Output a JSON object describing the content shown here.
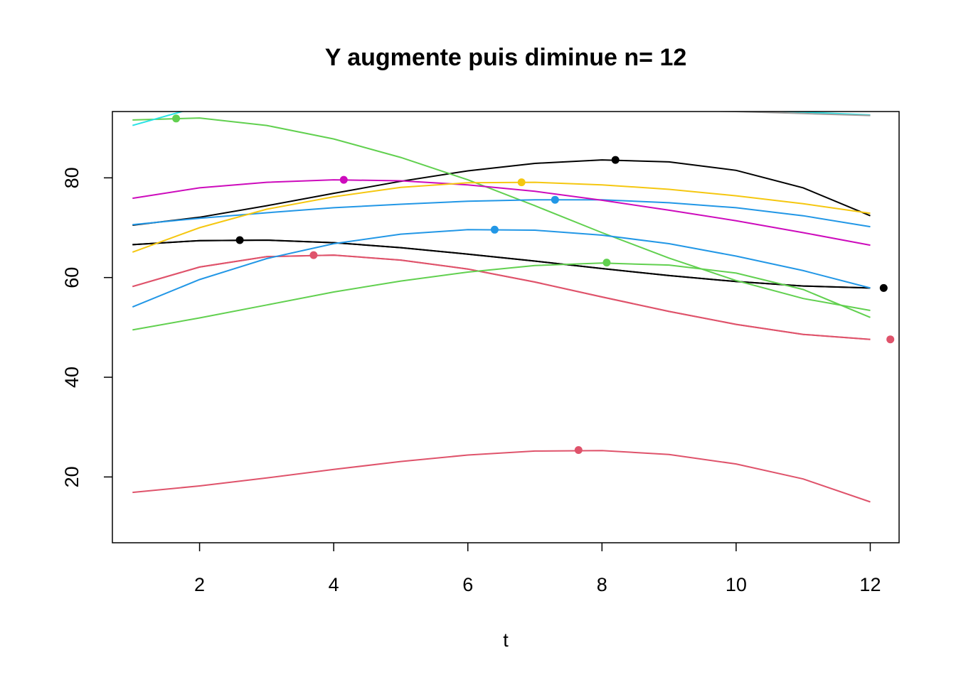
{
  "chart_data": {
    "type": "line",
    "title": "Y augmente puis diminue n= 12",
    "xlabel": "t",
    "ylabel": "",
    "xlim": [
      0.7,
      12.43
    ],
    "ylim": [
      6.8,
      93.3
    ],
    "x_ticks": [
      2,
      4,
      6,
      8,
      10,
      12
    ],
    "y_ticks": [
      20,
      40,
      60,
      80
    ],
    "x": [
      1,
      2,
      3,
      4,
      5,
      6,
      7,
      8,
      9,
      10,
      11,
      12
    ],
    "grid": false,
    "legend": "none",
    "series": [
      {
        "color": "#000000",
        "values": [
          70.5,
          72.1,
          74.4,
          76.9,
          79.3,
          81.4,
          82.9,
          83.6,
          83.2,
          81.5,
          78.0,
          72.4
        ],
        "point": {
          "x": 8.2,
          "y": 83.6
        }
      },
      {
        "color": "#000000",
        "values": [
          66.6,
          67.4,
          67.5,
          67.0,
          66.0,
          64.7,
          63.3,
          61.8,
          60.4,
          59.2,
          58.3,
          57.9
        ],
        "point": {
          "x": 12.2,
          "y": 57.9
        }
      },
      {
        "color": "#000000",
        "values": [
          66.6,
          67.4,
          67.5,
          67.0,
          66.0,
          64.7,
          63.3,
          61.8,
          60.4,
          59.2,
          58.3,
          57.9
        ],
        "point": {
          "x": 2.6,
          "y": 67.5
        }
      },
      {
        "color": "#DF536B",
        "values": [
          58.2,
          62.1,
          64.2,
          64.5,
          63.5,
          61.7,
          59.1,
          56.1,
          53.2,
          50.6,
          48.6,
          47.6
        ],
        "point": {
          "x": 3.7,
          "y": 64.5
        }
      },
      {
        "color": "#DF536B",
        "values": [
          58.2,
          62.1,
          64.2,
          64.5,
          63.5,
          61.7,
          59.1,
          56.1,
          53.2,
          50.6,
          48.6,
          47.6
        ],
        "point": {
          "x": 12.3,
          "y": 47.6
        }
      },
      {
        "color": "#DF536B",
        "values": [
          16.9,
          18.2,
          19.8,
          21.5,
          23.1,
          24.4,
          25.2,
          25.3,
          24.5,
          22.6,
          19.6,
          15.0
        ],
        "point": {
          "x": 7.65,
          "y": 25.4
        }
      },
      {
        "color": "#61D04F",
        "values": [
          91.6,
          92.0,
          90.5,
          87.8,
          84.1,
          79.6,
          74.4,
          69.0,
          63.9,
          59.4,
          55.8,
          53.4
        ],
        "point": {
          "x": 1.65,
          "y": 91.9
        }
      },
      {
        "color": "#61D04F",
        "values": [
          49.5,
          51.9,
          54.5,
          57.1,
          59.3,
          61.1,
          62.4,
          62.9,
          62.5,
          60.9,
          57.6,
          52.0
        ],
        "point": {
          "x": 8.07,
          "y": 63.0
        }
      },
      {
        "color": "#2297E6",
        "values": [
          70.6,
          71.9,
          73.0,
          74.0,
          74.7,
          75.3,
          75.6,
          75.6,
          75.0,
          74.0,
          72.4,
          70.2
        ],
        "point": {
          "x": 7.3,
          "y": 75.6
        }
      },
      {
        "color": "#2297E6",
        "values": [
          54.1,
          59.6,
          63.8,
          66.8,
          68.7,
          69.6,
          69.5,
          68.5,
          66.8,
          64.3,
          61.4,
          57.9
        ],
        "point": {
          "x": 6.4,
          "y": 69.6
        }
      },
      {
        "color": "#28E2E5",
        "values": [
          90.5,
          94.3,
          96.0,
          96.5,
          96.3,
          95.8,
          95.2,
          94.7,
          94.2,
          93.7,
          93.2,
          92.6
        ],
        "point": null
      },
      {
        "color": "#CD0BBC",
        "values": [
          75.9,
          78.0,
          79.1,
          79.6,
          79.4,
          78.6,
          77.3,
          75.5,
          73.5,
          71.4,
          69.0,
          66.5
        ],
        "point": {
          "x": 4.15,
          "y": 79.6
        }
      },
      {
        "color": "#F5C710",
        "values": [
          65.1,
          70.0,
          73.7,
          76.2,
          78.1,
          79.0,
          79.1,
          78.6,
          77.7,
          76.4,
          74.8,
          72.9
        ],
        "point": {
          "x": 6.8,
          "y": 79.1
        }
      },
      {
        "color": "#9E9E9E",
        "values": [
          96.0,
          95.8,
          95.6,
          95.3,
          95.0,
          94.7,
          94.3,
          93.9,
          93.6,
          93.3,
          92.9,
          92.5
        ],
        "point": null
      }
    ]
  }
}
